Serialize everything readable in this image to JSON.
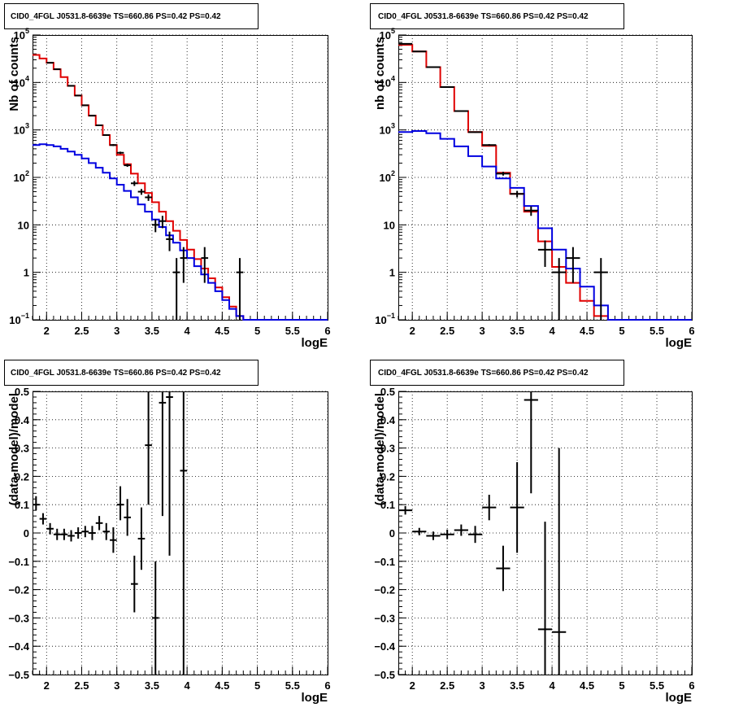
{
  "colors": {
    "data": "#000000",
    "total_model": "#e00000",
    "source_model": "#0000e0",
    "grid": "#000000"
  },
  "chart_data": [
    {
      "type": "line",
      "title": "CID0_4FGL J0531.8-6639e TS=660.86 PS=0.42 PS=0.42",
      "xlabel": "logE",
      "ylabel": "Nb of counts",
      "xlim": [
        1.8,
        6.0
      ],
      "ylim": [
        0.1,
        100000
      ],
      "log_y": true,
      "grid": true,
      "x_ticks": [
        "2",
        "2.5",
        "3",
        "3.5",
        "4",
        "4.5",
        "5",
        "5.5",
        "6"
      ],
      "y_ticks": [
        {
          "value": 0.1,
          "base": "10",
          "exp": "−1"
        },
        {
          "value": 1,
          "base": "1",
          "exp": ""
        },
        {
          "value": 10,
          "base": "10",
          "exp": ""
        },
        {
          "value": 100,
          "base": "10",
          "exp": "2"
        },
        {
          "value": 1000,
          "base": "10",
          "exp": "3"
        },
        {
          "value": 10000,
          "base": "10",
          "exp": "4"
        },
        {
          "value": 100000,
          "base": "10",
          "exp": "5"
        }
      ],
      "bin_width": 0.1,
      "bins_low": [
        1.8,
        1.9,
        2.0,
        2.1,
        2.2,
        2.3,
        2.4,
        2.5,
        2.6,
        2.7,
        2.8,
        2.9,
        3.0,
        3.1,
        3.2,
        3.3,
        3.4,
        3.5,
        3.6,
        3.7,
        3.8,
        3.9,
        4.0,
        4.1,
        4.2,
        4.3,
        4.4,
        4.5,
        4.6,
        4.7,
        4.8,
        4.9,
        5.0,
        5.1,
        5.2,
        5.3,
        5.4,
        5.5,
        5.6,
        5.7,
        5.8,
        5.9
      ],
      "series": [
        {
          "role": "total_model",
          "values": [
            38000,
            32000,
            26000,
            19000,
            13000,
            8500,
            5300,
            3300,
            2000,
            1250,
            780,
            480,
            300,
            190,
            120,
            75,
            47,
            30,
            19,
            12,
            7.5,
            4.8,
            3.0,
            1.9,
            1.2,
            0.75,
            0.48,
            0.3,
            0.19,
            0.12,
            0.1,
            0.1,
            0.1,
            0.1,
            0.1,
            0.1,
            0.1,
            0.1,
            0.1,
            0.1,
            0.1,
            0.1
          ]
        },
        {
          "role": "source_model",
          "values": [
            480,
            500,
            480,
            450,
            400,
            350,
            300,
            250,
            200,
            160,
            125,
            95,
            70,
            52,
            38,
            27,
            19,
            13,
            9,
            6,
            4.2,
            2.9,
            2.0,
            1.35,
            0.9,
            0.6,
            0.4,
            0.26,
            0.17,
            0.12,
            0.1,
            0.1,
            0.1,
            0.1,
            0.1,
            0.1,
            0.1,
            0.1,
            0.1,
            0.1,
            0.1,
            0.1
          ]
        }
      ],
      "points": [
        {
          "x": 2.05,
          "y": 26000,
          "lo": 25800,
          "hi": 26200
        },
        {
          "x": 2.15,
          "y": 19000,
          "lo": 18800,
          "hi": 19200
        },
        {
          "x": 2.35,
          "y": 8500,
          "lo": 8400,
          "hi": 8600
        },
        {
          "x": 2.45,
          "y": 5300,
          "lo": 5230,
          "hi": 5370
        },
        {
          "x": 2.55,
          "y": 3300,
          "lo": 3240,
          "hi": 3360
        },
        {
          "x": 2.65,
          "y": 2000,
          "lo": 1960,
          "hi": 2040
        },
        {
          "x": 2.75,
          "y": 1250,
          "lo": 1215,
          "hi": 1285
        },
        {
          "x": 2.85,
          "y": 780,
          "lo": 752,
          "hi": 808
        },
        {
          "x": 2.95,
          "y": 480,
          "lo": 458,
          "hi": 502
        },
        {
          "x": 3.05,
          "y": 330,
          "lo": 312,
          "hi": 348
        },
        {
          "x": 3.15,
          "y": 180,
          "lo": 167,
          "hi": 193
        },
        {
          "x": 3.25,
          "y": 75,
          "lo": 66,
          "hi": 84
        },
        {
          "x": 3.35,
          "y": 50,
          "lo": 43,
          "hi": 57
        },
        {
          "x": 3.45,
          "y": 38,
          "lo": 32,
          "hi": 44
        },
        {
          "x": 3.55,
          "y": 10,
          "lo": 7,
          "hi": 13
        },
        {
          "x": 3.65,
          "y": 12,
          "lo": 8.5,
          "hi": 15.5
        },
        {
          "x": 3.75,
          "y": 5,
          "lo": 2.8,
          "hi": 7.2
        },
        {
          "x": 3.85,
          "y": 1,
          "lo": 0.1,
          "hi": 2.0
        },
        {
          "x": 3.95,
          "y": 2,
          "lo": 0.6,
          "hi": 3.4
        },
        {
          "x": 4.25,
          "y": 2,
          "lo": 0.6,
          "hi": 3.4
        },
        {
          "x": 4.75,
          "y": 1,
          "lo": 0.1,
          "hi": 2.0
        }
      ]
    },
    {
      "type": "line",
      "title": "CID0_4FGL J0531.8-6639e TS=660.86 PS=0.42 PS=0.42",
      "xlabel": "logE",
      "ylabel": "nb of counts",
      "xlim": [
        1.8,
        6.0
      ],
      "ylim": [
        0.1,
        100000
      ],
      "log_y": true,
      "grid": true,
      "x_ticks": [
        "2",
        "2.5",
        "3",
        "3.5",
        "4",
        "4.5",
        "5",
        "5.5",
        "6"
      ],
      "y_ticks": [
        {
          "value": 0.1,
          "base": "10",
          "exp": "−1"
        },
        {
          "value": 1,
          "base": "1",
          "exp": ""
        },
        {
          "value": 10,
          "base": "10",
          "exp": ""
        },
        {
          "value": 100,
          "base": "10",
          "exp": "2"
        },
        {
          "value": 1000,
          "base": "10",
          "exp": "3"
        },
        {
          "value": 10000,
          "base": "10",
          "exp": "4"
        },
        {
          "value": 100000,
          "base": "10",
          "exp": "5"
        }
      ],
      "bin_width": 0.2,
      "bins_low": [
        1.8,
        2.0,
        2.2,
        2.4,
        2.6,
        2.8,
        3.0,
        3.2,
        3.4,
        3.6,
        3.8,
        4.0,
        4.2,
        4.4,
        4.6,
        4.8,
        5.0,
        5.2,
        5.4,
        5.6,
        5.8
      ],
      "series": [
        {
          "role": "total_model",
          "values": [
            62000,
            45000,
            21000,
            8000,
            2500,
            900,
            460,
            125,
            45,
            19,
            4.5,
            1.3,
            0.6,
            0.25,
            0.12,
            0.1,
            0.1,
            0.1,
            0.1,
            0.1,
            0.1
          ]
        },
        {
          "role": "source_model",
          "values": [
            900,
            950,
            850,
            650,
            450,
            280,
            170,
            95,
            60,
            25,
            8.5,
            3.0,
            1.2,
            0.5,
            0.2,
            0.1,
            0.1,
            0.1,
            0.1,
            0.1,
            0.1
          ]
        }
      ],
      "points": [
        {
          "x": 1.9,
          "y": 65000,
          "lo": 64700,
          "hi": 65300
        },
        {
          "x": 2.1,
          "y": 45000,
          "lo": 44780,
          "hi": 45220
        },
        {
          "x": 2.3,
          "y": 21000,
          "lo": 20850,
          "hi": 21150
        },
        {
          "x": 2.5,
          "y": 8000,
          "lo": 7910,
          "hi": 8090
        },
        {
          "x": 2.7,
          "y": 2500,
          "lo": 2450,
          "hi": 2550
        },
        {
          "x": 2.9,
          "y": 900,
          "lo": 870,
          "hi": 930
        },
        {
          "x": 3.1,
          "y": 480,
          "lo": 458,
          "hi": 502
        },
        {
          "x": 3.3,
          "y": 120,
          "lo": 109,
          "hi": 131
        },
        {
          "x": 3.5,
          "y": 45,
          "lo": 38,
          "hi": 52
        },
        {
          "x": 3.7,
          "y": 20,
          "lo": 15.5,
          "hi": 24.5
        },
        {
          "x": 3.9,
          "y": 3,
          "lo": 1.3,
          "hi": 4.7
        },
        {
          "x": 4.1,
          "y": 1,
          "lo": 0.1,
          "hi": 2.0
        },
        {
          "x": 4.3,
          "y": 2,
          "lo": 0.6,
          "hi": 3.4
        },
        {
          "x": 4.7,
          "y": 1,
          "lo": 0.1,
          "hi": 2.0
        }
      ]
    },
    {
      "type": "scatter",
      "title": "CID0_4FGL J0531.8-6639e TS=660.86 PS=0.42 PS=0.42",
      "xlabel": "logE",
      "ylabel": "(data-model)/model",
      "xlim": [
        1.8,
        6.0
      ],
      "ylim": [
        -0.5,
        0.5
      ],
      "log_y": false,
      "grid": true,
      "x_ticks": [
        "2",
        "2.5",
        "3",
        "3.5",
        "4",
        "4.5",
        "5",
        "5.5",
        "6"
      ],
      "y_ticks": [
        "−0.5",
        "−0.4",
        "−0.3",
        "−0.2",
        "−0.1",
        "0",
        "0.1",
        "0.2",
        "0.3",
        "0.4",
        "0.5"
      ],
      "bin_width": 0.1,
      "points": [
        {
          "x": 1.85,
          "y": 0.1,
          "lo": 0.08,
          "hi": 0.13
        },
        {
          "x": 1.95,
          "y": 0.05,
          "lo": 0.03,
          "hi": 0.07
        },
        {
          "x": 2.05,
          "y": 0.015,
          "lo": -0.005,
          "hi": 0.035
        },
        {
          "x": 2.15,
          "y": -0.005,
          "lo": -0.025,
          "hi": 0.015
        },
        {
          "x": 2.25,
          "y": -0.005,
          "lo": -0.025,
          "hi": 0.015
        },
        {
          "x": 2.35,
          "y": -0.01,
          "lo": -0.03,
          "hi": 0.01
        },
        {
          "x": 2.45,
          "y": 0.0,
          "lo": -0.02,
          "hi": 0.02
        },
        {
          "x": 2.55,
          "y": 0.005,
          "lo": -0.015,
          "hi": 0.025
        },
        {
          "x": 2.65,
          "y": 0.0,
          "lo": -0.025,
          "hi": 0.025
        },
        {
          "x": 2.75,
          "y": 0.035,
          "lo": 0.01,
          "hi": 0.06
        },
        {
          "x": 2.85,
          "y": 0.005,
          "lo": -0.025,
          "hi": 0.035
        },
        {
          "x": 2.95,
          "y": -0.025,
          "lo": -0.07,
          "hi": 0.02
        },
        {
          "x": 3.05,
          "y": 0.1,
          "lo": 0.045,
          "hi": 0.165
        },
        {
          "x": 3.15,
          "y": 0.055,
          "lo": -0.01,
          "hi": 0.12
        },
        {
          "x": 3.25,
          "y": -0.18,
          "lo": -0.28,
          "hi": -0.08
        },
        {
          "x": 3.35,
          "y": -0.02,
          "lo": -0.13,
          "hi": 0.09
        },
        {
          "x": 3.45,
          "y": 0.31,
          "lo": 0.1,
          "hi": 0.5
        },
        {
          "x": 3.55,
          "y": -0.3,
          "lo": -0.5,
          "hi": -0.1
        },
        {
          "x": 3.65,
          "y": 0.46,
          "lo": 0.06,
          "hi": 0.5
        },
        {
          "x": 3.75,
          "y": 0.48,
          "lo": -0.08,
          "hi": 0.5
        },
        {
          "x": 3.95,
          "y": 0.22,
          "lo": -0.5,
          "hi": 0.5
        }
      ]
    },
    {
      "type": "scatter",
      "title": "CID0_4FGL J0531.8-6639e TS=660.86 PS=0.42 PS=0.42",
      "xlabel": "logE",
      "ylabel": "(data-model)/model",
      "xlim": [
        1.8,
        6.0
      ],
      "ylim": [
        -0.5,
        0.5
      ],
      "log_y": false,
      "grid": true,
      "x_ticks": [
        "2",
        "2.5",
        "3",
        "3.5",
        "4",
        "4.5",
        "5",
        "5.5",
        "6"
      ],
      "y_ticks": [
        "−0.5",
        "−0.4",
        "−0.3",
        "−0.2",
        "−0.1",
        "0",
        "0.1",
        "0.2",
        "0.3",
        "0.4",
        "0.5"
      ],
      "bin_width": 0.2,
      "points": [
        {
          "x": 1.9,
          "y": 0.08,
          "lo": 0.065,
          "hi": 0.095
        },
        {
          "x": 2.1,
          "y": 0.005,
          "lo": -0.008,
          "hi": 0.018
        },
        {
          "x": 2.3,
          "y": -0.01,
          "lo": -0.025,
          "hi": 0.005
        },
        {
          "x": 2.5,
          "y": -0.005,
          "lo": -0.022,
          "hi": 0.012
        },
        {
          "x": 2.7,
          "y": 0.01,
          "lo": -0.01,
          "hi": 0.03
        },
        {
          "x": 2.9,
          "y": -0.005,
          "lo": -0.035,
          "hi": 0.025
        },
        {
          "x": 3.1,
          "y": 0.09,
          "lo": 0.045,
          "hi": 0.135
        },
        {
          "x": 3.3,
          "y": -0.125,
          "lo": -0.205,
          "hi": -0.045
        },
        {
          "x": 3.5,
          "y": 0.09,
          "lo": -0.07,
          "hi": 0.25
        },
        {
          "x": 3.7,
          "y": 0.47,
          "lo": 0.14,
          "hi": 0.5
        },
        {
          "x": 3.9,
          "y": -0.34,
          "lo": -0.5,
          "hi": 0.04
        },
        {
          "x": 4.1,
          "y": -0.35,
          "lo": -0.5,
          "hi": 0.3
        }
      ]
    }
  ]
}
